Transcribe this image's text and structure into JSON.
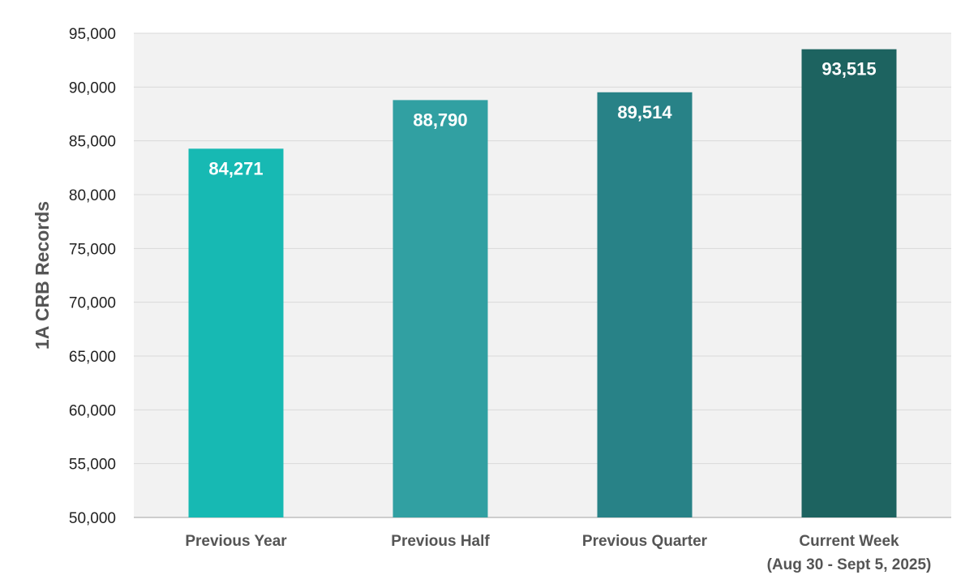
{
  "chart_data": {
    "type": "bar",
    "categories": [
      [
        "Previous Year"
      ],
      [
        "Previous Half"
      ],
      [
        "Previous Quarter"
      ],
      [
        "Current Week",
        "(Aug 30 - Sept 5, 2025)"
      ]
    ],
    "values": [
      84271,
      88790,
      89514,
      93515
    ],
    "value_labels": [
      "84,271",
      "88,790",
      "89,514",
      "93,515"
    ],
    "bar_colors": [
      "#17b9b3",
      "#31a0a2",
      "#288287",
      "#1d6360"
    ],
    "ylabel": "1A CRB Records",
    "ylim": [
      50000,
      95000
    ],
    "yticks": [
      50000,
      55000,
      60000,
      65000,
      70000,
      75000,
      80000,
      85000,
      90000,
      95000
    ],
    "ytick_labels": [
      "50,000",
      "55,000",
      "60,000",
      "65,000",
      "70,000",
      "75,000",
      "80,000",
      "85,000",
      "90,000",
      "95,000"
    ],
    "grid": true,
    "plot_background": "#f2f2f2",
    "gridline_color": "#d9d9d9"
  }
}
